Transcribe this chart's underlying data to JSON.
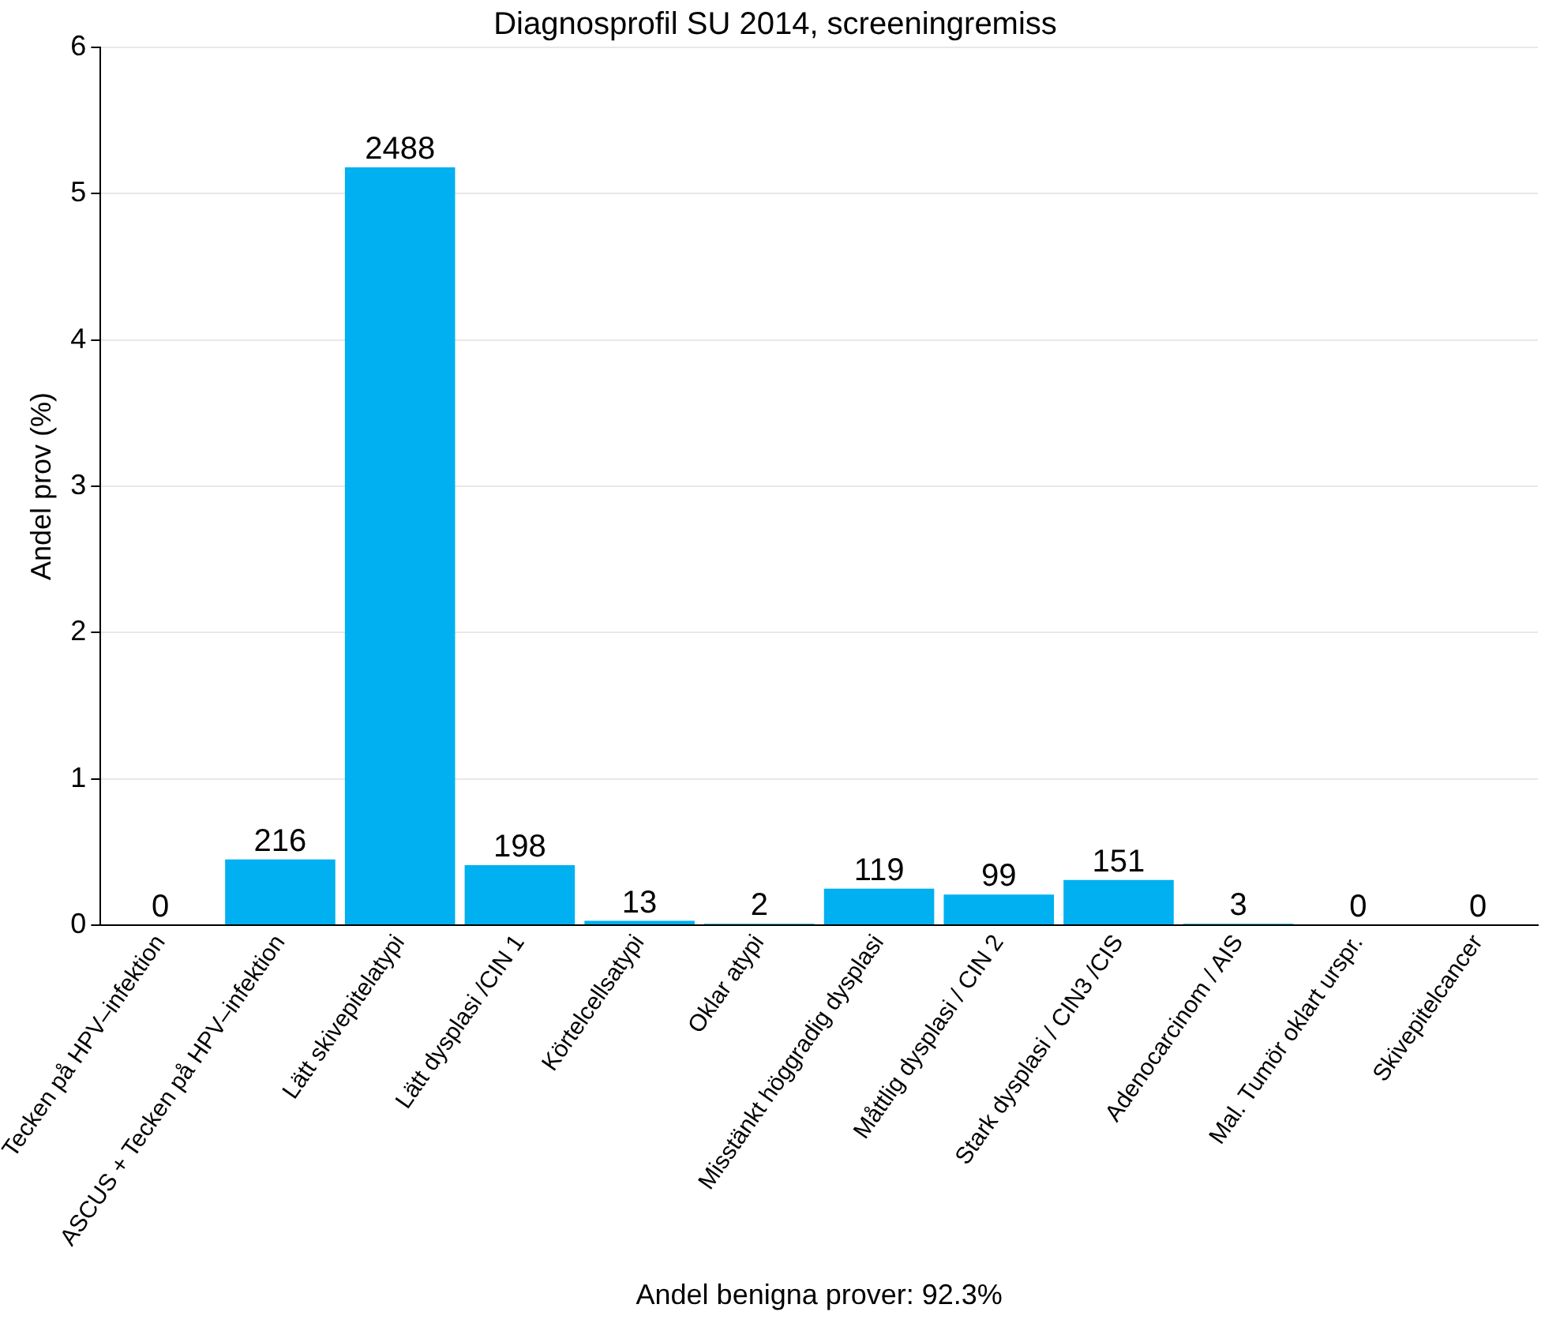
{
  "chart_data": {
    "type": "bar",
    "title": "Diagnosprofil SU 2014, screeningremiss",
    "ylabel": "Andel prov (%)",
    "categories": [
      "Tecken på HPV–infektion",
      "ASCUS + Tecken på HPV–infektion",
      "Lätt skivepitelatypi",
      "Lätt dysplasi /CIN 1",
      "Körtelcellsatypi",
      "Oklar atypi",
      "Misstänkt höggradig dysplasi",
      "Måttlig dysplasi / CIN 2",
      "Stark dysplasi / CIN3 /CIS",
      "Adenocarcinom / AIS",
      "Mal. Tumör oklart urspr.",
      "Skivepitelcancer"
    ],
    "values": [
      0,
      0.45,
      5.18,
      0.41,
      0.03,
      0.01,
      0.25,
      0.21,
      0.31,
      0.01,
      0,
      0
    ],
    "color": "#00b0f0",
    "ylim": [
      0,
      6
    ],
    "yticks": [
      0,
      1,
      2,
      3,
      4,
      5,
      6
    ],
    "grid": "y",
    "annotations": [
      {
        "text": "0",
        "x": "Tecken på HPV–infektion",
        "y": 0
      },
      {
        "text": "216",
        "x": "ASCUS + Tecken på HPV–infektion",
        "y": 0.45
      },
      {
        "text": "2488",
        "x": "Lätt skivepitelatypi",
        "y": 5.18
      },
      {
        "text": "198",
        "x": "Lätt dysplasi /CIN 1",
        "y": 0.41
      },
      {
        "text": "13",
        "x": "Körtelcellsatypi",
        "y": 0.03
      },
      {
        "text": "2",
        "x": "Oklar atypi",
        "y": 0.01
      },
      {
        "text": "119",
        "x": "Misstänkt höggradig dysplasi",
        "y": 0.25
      },
      {
        "text": "99",
        "x": "Måttlig dysplasi / CIN 2",
        "y": 0.21
      },
      {
        "text": "151",
        "x": "Stark dysplasi / CIN3 /CIS",
        "y": 0.31
      },
      {
        "text": "3",
        "x": "Adenocarcinom / AIS",
        "y": 0.01
      },
      {
        "text": "0",
        "x": "Mal. Tumör oklart urspr.",
        "y": 0
      },
      {
        "text": "0",
        "x": "Skivepitelcancer",
        "y": 0
      },
      "Andel benigna prover: 92.3%"
    ]
  }
}
